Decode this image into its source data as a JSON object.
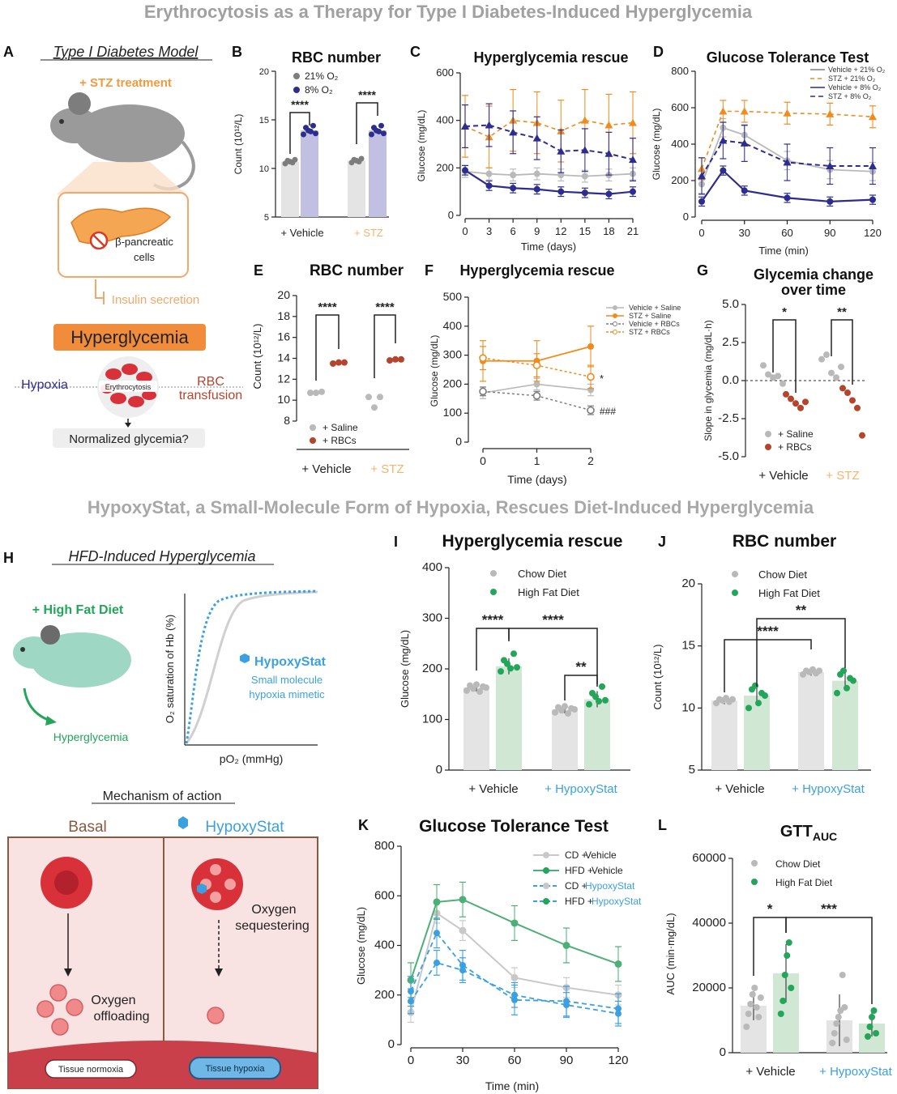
{
  "colors": {
    "gray": "#b9b9b9",
    "gray_dark": "#7d7d7d",
    "gray_bar": "#e4e4e4",
    "navy": "#2d2d8f",
    "lavender": "#c2c0e2",
    "orange": "#f08c1e",
    "orange_light": "#f7b36b",
    "red_brown": "#b4442c",
    "salmon": "#e08a7a",
    "pink_dash": "#cf5a6a",
    "green": "#23a55a",
    "green_bar": "#cfe7d3",
    "blue": "#3aa0e0",
    "title_gray": "#9a9a9a"
  },
  "sections": {
    "top_title": "Erythrocytosis as a Therapy for Type I Diabetes-Induced Hyperglycemia",
    "mid_title": "HypoxyStat, a Small-Molecule Form of Hypoxia, Rescues Diet-Induced Hyperglycemia"
  },
  "panel_letters": [
    "A",
    "B",
    "C",
    "D",
    "E",
    "F",
    "G",
    "H",
    "I",
    "J",
    "K",
    "L"
  ],
  "panelA": {
    "title": "Type I Diabetes Model",
    "stz": "+ STZ treatment",
    "beta_line1": "β-pancreatic",
    "beta_line2": "cells",
    "insulin": "Insulin secretion",
    "hyperglycemia": "Hyperglycemia",
    "hypoxia": "Hypoxia",
    "erythrocytosis": "Erythrocytosis",
    "rbc1": "RBC",
    "rbc2": "transfusion",
    "normalized": "Normalized glycemia?"
  },
  "panelH": {
    "title": "HFD-Induced Hyperglycemia",
    "hfd": "+ High Fat Diet",
    "hyperglycemia": "Hyperglycemia",
    "ylabel": "O₂ saturation of Hb (%)",
    "xlabel": "pO₂ (mmHg)",
    "hypoxystat": "HypoxyStat",
    "small1": "Small molecule",
    "small2": "hypoxia mimetic",
    "mechanism": "Mechanism of action",
    "basal": "Basal",
    "hs": "HypoxyStat",
    "oxy_seq1": "Oxygen",
    "oxy_seq2": "sequestering",
    "oxy_off1": "Oxygen",
    "oxy_off2": "offloading",
    "normoxia": "Tissue normoxia",
    "hypoxia": "Tissue hypoxia"
  },
  "chart_data": [
    {
      "id": "B",
      "type": "bar",
      "title": "RBC number",
      "ylabel": "Count (10¹²/L)",
      "ylim": [
        5,
        20
      ],
      "yticks": [
        5,
        10,
        15,
        20
      ],
      "groups": [
        "+ Vehicle",
        "+ STZ"
      ],
      "legend": [
        "21% O₂",
        "8% O₂"
      ],
      "values": [
        [
          10.7,
          13.9
        ],
        [
          10.8,
          13.9
        ]
      ],
      "significance": [
        "****",
        "****"
      ]
    },
    {
      "id": "C",
      "type": "line",
      "title": "Hyperglycemia rescue",
      "xlabel": "Time (days)",
      "ylabel": "Glucose (mg/dL)",
      "xlim": [
        0,
        21
      ],
      "xticks": [
        0,
        3,
        6,
        9,
        12,
        15,
        18,
        21
      ],
      "ylim": [
        0,
        600
      ],
      "yticks": [
        0,
        200,
        400,
        600
      ],
      "x": [
        0,
        3,
        6,
        9,
        12,
        15,
        18,
        21
      ],
      "series": [
        {
          "name": "Vehicle + 21% O₂",
          "values": [
            185,
            175,
            170,
            175,
            170,
            165,
            170,
            175
          ],
          "error": 25
        },
        {
          "name": "STZ + 21% O₂",
          "values": [
            375,
            330,
            400,
            390,
            355,
            400,
            380,
            390
          ],
          "error": 130
        },
        {
          "name": "Vehicle + 8% O₂",
          "values": [
            190,
            125,
            115,
            110,
            100,
            95,
            90,
            100
          ],
          "error": 20
        },
        {
          "name": "STZ + 8% O₂",
          "values": [
            375,
            380,
            350,
            325,
            270,
            275,
            260,
            235
          ],
          "error": 90
        }
      ]
    },
    {
      "id": "D",
      "type": "line",
      "title": "Glucose Tolerance Test",
      "xlabel": "Time (min)",
      "ylabel": "Glucose (mg/dL)",
      "xlim": [
        0,
        120
      ],
      "xticks": [
        0,
        30,
        60,
        90,
        120
      ],
      "ylim": [
        0,
        800
      ],
      "yticks": [
        0,
        200,
        400,
        600,
        800
      ],
      "x": [
        0,
        15,
        30,
        60,
        90,
        120
      ],
      "legend": [
        "Vehicle + 21% O₂",
        "STZ + 21% O₂",
        "Vehicle + 8% O₂",
        "STZ + 8% O₂"
      ],
      "series": [
        {
          "name": "Vehicle + 21% O₂",
          "values": [
            180,
            490,
            450,
            310,
            260,
            250
          ],
          "error": 50
        },
        {
          "name": "STZ + 21% O₂",
          "values": [
            265,
            580,
            580,
            570,
            565,
            550
          ],
          "error": 60
        },
        {
          "name": "Vehicle + 8% O₂",
          "values": [
            85,
            255,
            145,
            105,
            85,
            95
          ],
          "error": 25
        },
        {
          "name": "STZ + 8% O₂",
          "values": [
            225,
            420,
            405,
            300,
            280,
            280
          ],
          "error": 100
        }
      ]
    },
    {
      "id": "E",
      "type": "scatter",
      "title": "RBC number",
      "ylabel": "Count (10¹²/L)",
      "ylim": [
        8,
        20
      ],
      "yticks": [
        8,
        10,
        12,
        14,
        16,
        18,
        20
      ],
      "groups": [
        "+ Vehicle",
        "+ STZ"
      ],
      "legend": [
        "+ Saline",
        "+ RBCs"
      ],
      "points": [
        [
          [
            10.7,
            10.7,
            10.8
          ],
          [
            13.5,
            13.6,
            13.6
          ]
        ],
        [
          [
            10.3,
            9.3,
            10.3
          ],
          [
            13.8,
            13.9,
            13.9
          ]
        ]
      ],
      "significance": [
        "****",
        "****"
      ]
    },
    {
      "id": "F",
      "type": "line",
      "title": "Hyperglycemia rescue",
      "xlabel": "Time (days)",
      "ylabel": "Glucose (mg/dL)",
      "xlim": [
        0,
        2
      ],
      "xticks": [
        0,
        1,
        2
      ],
      "ylim": [
        0,
        500
      ],
      "yticks": [
        0,
        100,
        200,
        300,
        400,
        500
      ],
      "x": [
        0,
        1,
        2
      ],
      "legend": [
        "Vehicle + Saline",
        "STZ + Saline",
        "Vehicle + RBCs",
        "STZ + RBCs"
      ],
      "series": [
        {
          "name": "Vehicle + Saline",
          "values": [
            170,
            200,
            180
          ],
          "error": 20
        },
        {
          "name": "STZ + Saline",
          "values": [
            280,
            280,
            330
          ],
          "error": 70
        },
        {
          "name": "Vehicle + RBCs",
          "values": [
            175,
            160,
            110
          ],
          "error": 15
        },
        {
          "name": "STZ + RBCs",
          "values": [
            290,
            265,
            225
          ],
          "error": 40
        }
      ],
      "annotations": [
        "*",
        "###"
      ]
    },
    {
      "id": "G",
      "type": "scatter",
      "title": "Glycemia change over time",
      "title_line1": "Glycemia change",
      "title_line2": "over time",
      "ylabel": "Slope in glycemia (mg/dL·h)",
      "ylim": [
        -5,
        5
      ],
      "yticks": [
        "5.0",
        "2.5",
        "0.0",
        "-2.5",
        "-5.0"
      ],
      "groups": [
        "+ Vehicle",
        "+ STZ"
      ],
      "legend": [
        "+ Saline",
        "+ RBCs"
      ],
      "points": [
        [
          [
            1.0,
            0.4,
            0.2,
            0.3,
            -0.2
          ],
          [
            -0.9,
            -1.2,
            -1.5,
            -1.8,
            -1.4
          ]
        ],
        [
          [
            1.4,
            1.7,
            0.5,
            0.2,
            0.9
          ],
          [
            -0.5,
            -0.8,
            -1.3,
            -1.8,
            -3.6
          ]
        ]
      ],
      "significance": [
        "*",
        "**"
      ]
    },
    {
      "id": "I",
      "type": "bar",
      "title": "Hyperglycemia rescue",
      "ylabel": "Glucose (mg/dL)",
      "ylim": [
        0,
        400
      ],
      "yticks": [
        0,
        100,
        200,
        300,
        400
      ],
      "groups": [
        "+ Vehicle",
        "+ HypoxyStat"
      ],
      "legend": [
        "Chow Diet",
        "High Fat Diet"
      ],
      "values": [
        [
          163,
          205
        ],
        [
          120,
          140
        ]
      ],
      "significance": [
        "****",
        "****",
        "**"
      ]
    },
    {
      "id": "J",
      "type": "bar",
      "title": "RBC number",
      "ylabel": "Count (10¹²/L)",
      "ylim": [
        5,
        20
      ],
      "yticks": [
        5,
        10,
        15,
        20
      ],
      "groups": [
        "+ Vehicle",
        "+ HypoxyStat"
      ],
      "legend": [
        "Chow Diet",
        "High Fat Diet"
      ],
      "values": [
        [
          10.6,
          11.0
        ],
        [
          12.9,
          12.2
        ]
      ],
      "significance": [
        "****",
        "**"
      ]
    },
    {
      "id": "K",
      "type": "line",
      "title": "Glucose Tolerance Test",
      "xlabel": "Time (min)",
      "ylabel": "Glucose (mg/dL)",
      "xlim": [
        0,
        120
      ],
      "xticks": [
        0,
        30,
        60,
        90,
        120
      ],
      "ylim": [
        0,
        800
      ],
      "yticks": [
        0,
        200,
        400,
        600,
        800
      ],
      "x": [
        0,
        15,
        30,
        60,
        90,
        120
      ],
      "legend_prefix": [
        "CD +",
        "HFD +",
        "CD +",
        "HFD +"
      ],
      "legend_suffix": [
        "Vehicle",
        "Vehicle",
        "HypoxyStat",
        "HypoxyStat"
      ],
      "series": [
        {
          "name": "CD + Vehicle",
          "values": [
            130,
            530,
            460,
            270,
            230,
            200
          ],
          "error": 40
        },
        {
          "name": "HFD + Vehicle",
          "values": [
            260,
            575,
            585,
            490,
            400,
            325
          ],
          "error": 70
        },
        {
          "name": "CD + HypoxyStat",
          "values": [
            175,
            330,
            300,
            200,
            160,
            125
          ],
          "error": 50
        },
        {
          "name": "HFD + HypoxyStat",
          "values": [
            215,
            450,
            320,
            180,
            175,
            145
          ],
          "error": 60
        }
      ]
    },
    {
      "id": "L",
      "type": "bar",
      "title": "GTT",
      "title_sub": "AUC",
      "ylabel": "AUC (min·mg/dL)",
      "ylim": [
        0,
        60000
      ],
      "yticks": [
        0,
        20000,
        40000,
        60000
      ],
      "groups": [
        "+ Vehicle",
        "+ HypoxyStat"
      ],
      "legend": [
        "Chow Diet",
        "High Fat Diet"
      ],
      "values": [
        [
          14500,
          24500
        ],
        [
          10000,
          9000
        ]
      ],
      "significance": [
        "*",
        "***"
      ]
    }
  ]
}
